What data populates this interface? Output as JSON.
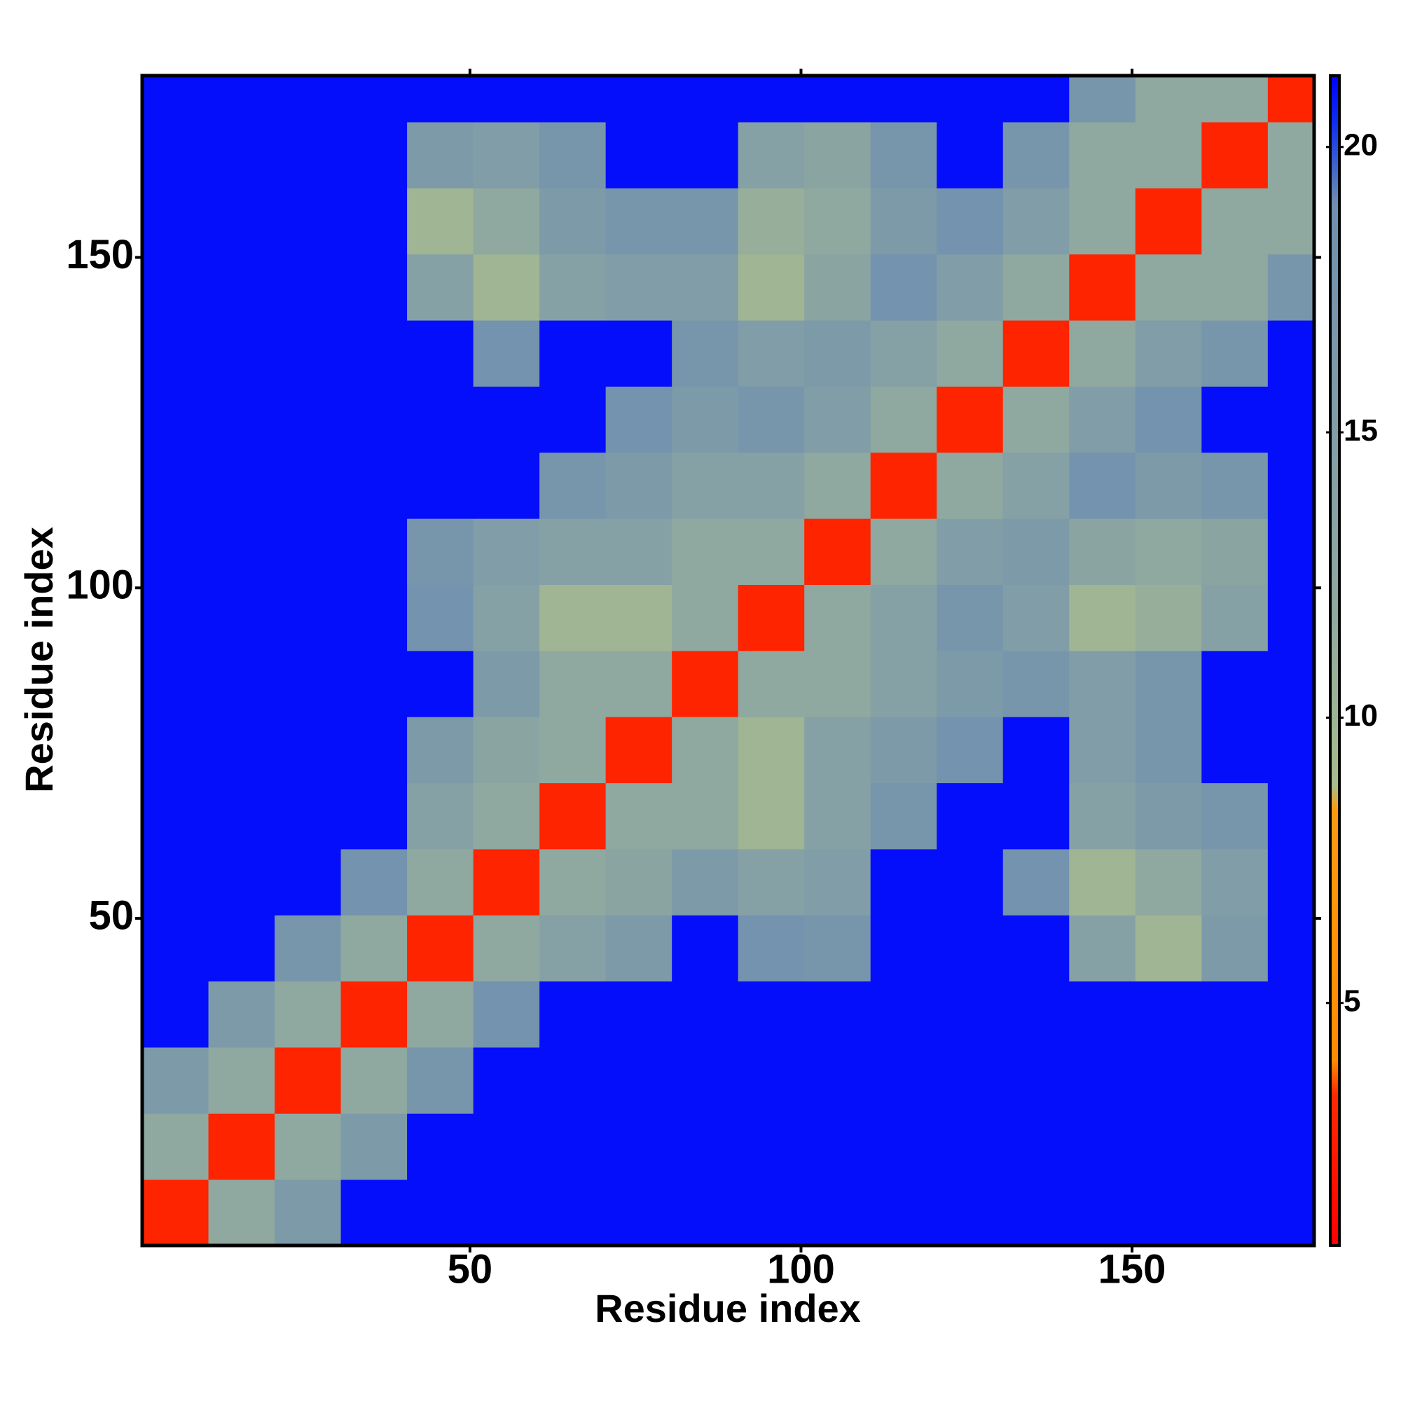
{
  "chart_data": {
    "type": "heatmap",
    "xlabel": "Residue index",
    "ylabel": "Residue index",
    "xlim": [
      0.5,
      177.5
    ],
    "ylim": [
      0.5,
      177.5
    ],
    "xticks": [
      50,
      100,
      150
    ],
    "yticks": [
      50,
      100,
      150
    ],
    "x_bins": [
      0.5,
      10.5,
      20.5,
      30.5,
      40.5,
      50.5,
      60.5,
      70.5,
      80.5,
      90.5,
      100.5,
      110.5,
      120.5,
      130.5,
      140.5,
      150.5,
      160.5,
      170.5,
      177.5
    ],
    "y_bins": [
      0.5,
      10.5,
      20.5,
      30.5,
      40.5,
      50.5,
      60.5,
      70.5,
      80.5,
      90.5,
      100.5,
      110.5,
      120.5,
      130.5,
      140.5,
      150.5,
      160.5,
      170.5,
      177.5
    ],
    "z": [
      [
        3,
        12,
        16,
        21,
        21,
        21,
        21,
        21,
        21,
        21,
        21,
        21,
        21,
        21,
        21,
        21,
        21,
        21
      ],
      [
        12,
        3,
        12,
        16,
        21,
        21,
        21,
        21,
        21,
        21,
        21,
        21,
        21,
        21,
        21,
        21,
        21,
        21
      ],
      [
        16,
        12,
        3,
        12,
        17,
        21,
        21,
        21,
        21,
        21,
        21,
        21,
        21,
        21,
        21,
        21,
        21,
        21
      ],
      [
        21,
        16,
        12,
        3,
        12,
        18,
        21,
        21,
        21,
        21,
        21,
        21,
        21,
        21,
        21,
        21,
        21,
        21
      ],
      [
        21,
        21,
        17,
        12,
        3,
        12,
        14,
        16,
        21,
        18,
        17,
        21,
        21,
        21,
        14,
        10,
        16,
        21
      ],
      [
        21,
        21,
        21,
        18,
        12,
        3,
        12,
        13,
        16,
        14,
        15,
        21,
        21,
        18,
        10,
        12,
        15,
        21
      ],
      [
        21,
        21,
        21,
        21,
        14,
        12,
        3,
        12,
        12,
        10,
        14,
        17,
        21,
        21,
        14,
        16,
        17,
        21
      ],
      [
        21,
        21,
        21,
        21,
        16,
        13,
        12,
        3,
        12,
        10,
        14,
        16,
        18,
        21,
        15,
        17,
        21,
        21
      ],
      [
        21,
        21,
        21,
        21,
        21,
        16,
        12,
        12,
        3,
        12,
        12,
        14,
        16,
        17,
        15,
        17,
        21,
        21
      ],
      [
        21,
        21,
        21,
        21,
        18,
        14,
        10,
        10,
        12,
        3,
        12,
        14,
        17,
        15,
        10,
        11,
        14,
        21
      ],
      [
        21,
        21,
        21,
        21,
        17,
        15,
        14,
        14,
        12,
        12,
        3,
        12,
        15,
        16,
        13,
        12,
        13,
        21
      ],
      [
        21,
        21,
        21,
        21,
        21,
        21,
        17,
        16,
        14,
        14,
        12,
        3,
        12,
        14,
        18,
        16,
        17,
        21
      ],
      [
        21,
        21,
        21,
        21,
        21,
        21,
        21,
        18,
        16,
        17,
        15,
        12,
        3,
        12,
        15,
        18,
        21,
        21
      ],
      [
        21,
        21,
        21,
        21,
        21,
        18,
        21,
        21,
        17,
        15,
        16,
        14,
        12,
        3,
        12,
        15,
        17,
        21
      ],
      [
        21,
        21,
        21,
        21,
        14,
        10,
        14,
        15,
        15,
        10,
        13,
        18,
        15,
        12,
        3,
        12,
        12,
        17
      ],
      [
        21,
        21,
        21,
        21,
        10,
        12,
        16,
        17,
        17,
        11,
        12,
        16,
        18,
        15,
        12,
        3,
        12,
        12
      ],
      [
        21,
        21,
        21,
        21,
        16,
        15,
        17,
        21,
        21,
        14,
        13,
        17,
        21,
        17,
        12,
        12,
        3,
        12
      ],
      [
        21,
        21,
        21,
        21,
        21,
        21,
        21,
        21,
        21,
        21,
        21,
        21,
        21,
        21,
        17,
        12,
        12,
        3
      ]
    ],
    "clim": [
      0.75,
      21.25
    ],
    "cticks": [
      5,
      10,
      15,
      20
    ],
    "colorscale": [
      [
        0.75,
        "#ff0000"
      ],
      [
        3.4,
        "#ff2a00"
      ],
      [
        4.0,
        "#ff8c00"
      ],
      [
        8.4,
        "#ff9a10"
      ],
      [
        8.8,
        "#a8bc8c"
      ],
      [
        12,
        "#8fa8a0"
      ],
      [
        19,
        "#6f8fb0"
      ],
      [
        20.4,
        "#1030ee"
      ],
      [
        21.25,
        "#0000ff"
      ]
    ]
  }
}
